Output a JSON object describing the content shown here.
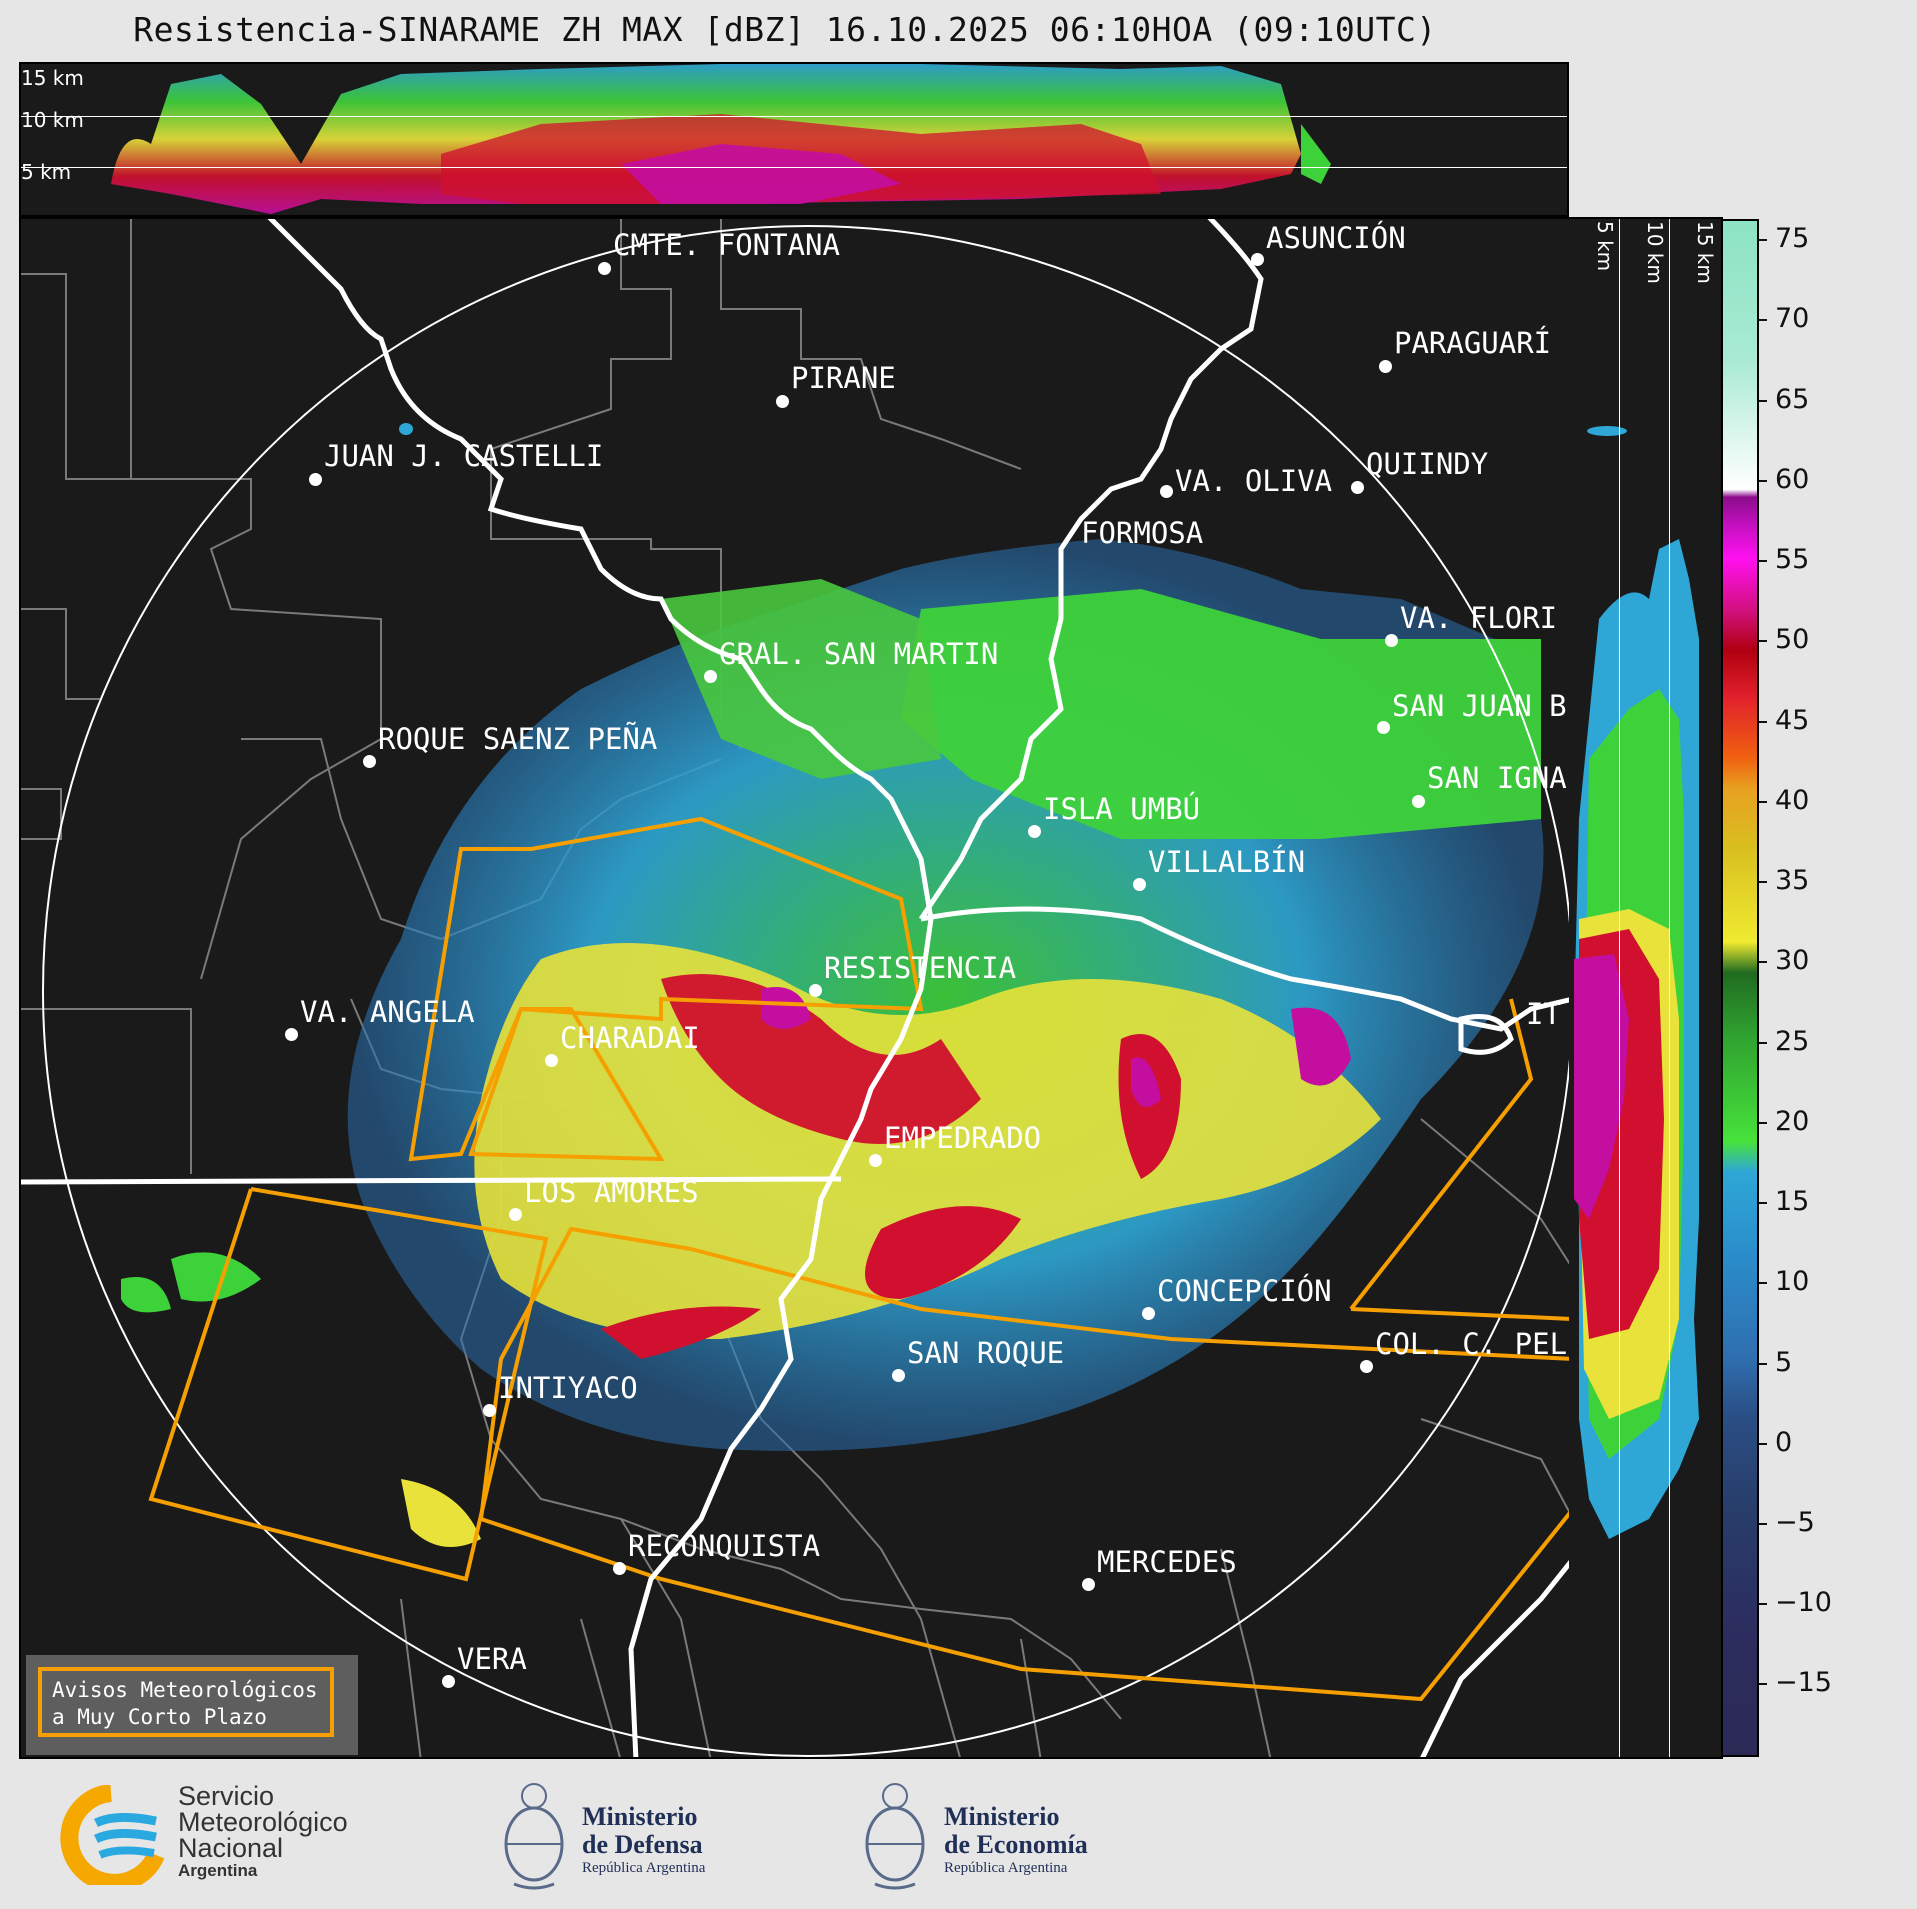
{
  "title": "Resistencia-SINARAME ZH MAX [dBZ] 16.10.2025 06:10HOA (09:10UTC)",
  "top_cross_section": {
    "altitude_labels": [
      "15 km",
      "10 km",
      "5 km"
    ]
  },
  "right_cross_section": {
    "altitude_labels": [
      "5 km",
      "10 km",
      "15 km"
    ]
  },
  "colorbar": {
    "unit": "dBZ",
    "ticks": [
      "75",
      "70",
      "65",
      "60",
      "55",
      "50",
      "45",
      "40",
      "35",
      "30",
      "25",
      "20",
      "15",
      "10",
      "5",
      "0",
      "−5",
      "−10",
      "−15"
    ]
  },
  "cities": [
    {
      "name": "CMTE. FONTANA"
    },
    {
      "name": "ASUNCIÓN"
    },
    {
      "name": "PARAGUARÍ"
    },
    {
      "name": "PIRANE"
    },
    {
      "name": "JUAN J. CASTELLI"
    },
    {
      "name": "VA. OLIVA"
    },
    {
      "name": "QUIINDY"
    },
    {
      "name": "FORMOSA"
    },
    {
      "name": "VA. FLORI"
    },
    {
      "name": "GRAL. SAN MARTIN"
    },
    {
      "name": "SAN JUAN B"
    },
    {
      "name": "ROQUE SAENZ PEÑA"
    },
    {
      "name": "SAN IGNA"
    },
    {
      "name": "ISLA UMBÚ"
    },
    {
      "name": "VILLALBÍN"
    },
    {
      "name": "RESISTENCIA"
    },
    {
      "name": "VA. ANGELA"
    },
    {
      "name": "CHARADAI"
    },
    {
      "name": "IT"
    },
    {
      "name": "EMPEDRADO"
    },
    {
      "name": "LOS AMORES"
    },
    {
      "name": "CONCEPCIÓN"
    },
    {
      "name": "COL. C. PEL"
    },
    {
      "name": "SAN ROQUE"
    },
    {
      "name": "INTIYACO"
    },
    {
      "name": "RECONQUISTA"
    },
    {
      "name": "MERCEDES"
    },
    {
      "name": "VERA"
    }
  ],
  "legend": {
    "line1": "Avisos Meteorológicos",
    "line2": "a Muy Corto Plazo"
  },
  "logos": {
    "smn": {
      "line1": "Servicio",
      "line2": "Meteorológico",
      "line3": "Nacional",
      "line4": "Argentina"
    },
    "defensa": {
      "line1": "Ministerio",
      "line2": "de Defensa",
      "line3": "República Argentina"
    },
    "economia": {
      "line1": "Ministerio",
      "line2": "de Economía",
      "line3": "República Argentina"
    }
  },
  "colors": {
    "warning_polygon": "#f5a000",
    "background": "#1a1a1a"
  }
}
